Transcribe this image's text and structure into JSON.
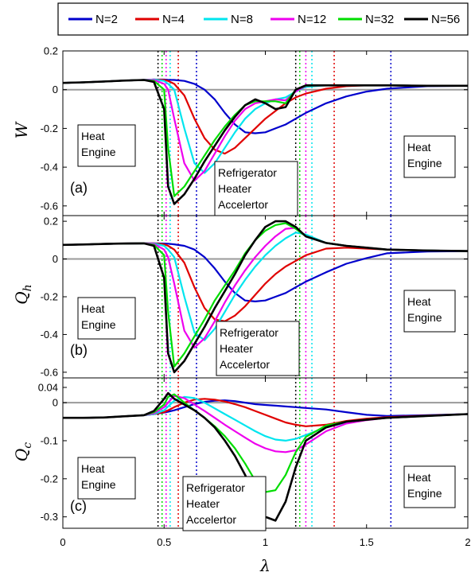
{
  "chart_data": {
    "type": "line",
    "xlabel": "λ",
    "xlim": [
      0,
      2
    ],
    "x_ticks": [
      "0",
      "0.5",
      "1",
      "1.5",
      "2"
    ],
    "legend_position": "top",
    "series_colors": [
      "#0000cc",
      "#e00000",
      "#00e5ee",
      "#ee00ee",
      "#00dd00",
      "#000000"
    ],
    "legend": [
      "N=2",
      "N=4",
      "N=8",
      "N=12",
      "N=32",
      "N=56"
    ],
    "x": [
      0,
      0.1,
      0.2,
      0.3,
      0.4,
      0.45,
      0.5,
      0.52,
      0.55,
      0.6,
      0.65,
      0.7,
      0.75,
      0.8,
      0.85,
      0.9,
      0.95,
      1.0,
      1.05,
      1.1,
      1.15,
      1.2,
      1.3,
      1.4,
      1.5,
      1.6,
      1.8,
      2.0
    ],
    "panels": [
      {
        "label": "(a)",
        "ylabel": "W",
        "ylim": [
          -0.65,
          0.2
        ],
        "y_ticks": [
          "0.2",
          "0",
          "-0.2",
          "-0.4",
          "-0.6"
        ],
        "y_tick_values": [
          0.2,
          0,
          -0.2,
          -0.4,
          -0.6
        ],
        "regions": [
          {
            "lines": [
              "Heat",
              "Engine"
            ]
          },
          {
            "lines": [
              "Refrigerator",
              "Heater",
              "Accelertor"
            ]
          },
          {
            "lines": [
              "Heat",
              "Engine"
            ]
          }
        ],
        "vlines": [
          {
            "x": 0.47,
            "series": 5
          },
          {
            "x": 0.49,
            "series": 4
          },
          {
            "x": 0.51,
            "series": 3
          },
          {
            "x": 0.53,
            "series": 2
          },
          {
            "x": 0.57,
            "series": 1
          },
          {
            "x": 0.66,
            "series": 0
          },
          {
            "x": 1.15,
            "series": 5
          },
          {
            "x": 1.17,
            "series": 4
          },
          {
            "x": 1.2,
            "series": 3
          },
          {
            "x": 1.23,
            "series": 2
          },
          {
            "x": 1.34,
            "series": 1
          },
          {
            "x": 1.62,
            "series": 0
          }
        ],
        "series": [
          {
            "values": [
              0.035,
              0.038,
              0.042,
              0.047,
              0.05,
              0.052,
              0.052,
              0.051,
              0.05,
              0.045,
              0.03,
              0.0,
              -0.05,
              -0.12,
              -0.18,
              -0.22,
              -0.225,
              -0.22,
              -0.2,
              -0.18,
              -0.15,
              -0.12,
              -0.07,
              -0.035,
              -0.01,
              0.005,
              0.018,
              0.02
            ]
          },
          {
            "values": [
              0.035,
              0.038,
              0.042,
              0.047,
              0.05,
              0.052,
              0.05,
              0.045,
              0.03,
              -0.03,
              -0.15,
              -0.25,
              -0.31,
              -0.33,
              -0.3,
              -0.25,
              -0.2,
              -0.15,
              -0.11,
              -0.07,
              -0.04,
              -0.02,
              0.005,
              0.018,
              0.022,
              0.022,
              0.02,
              0.02
            ]
          },
          {
            "values": [
              0.035,
              0.038,
              0.042,
              0.047,
              0.05,
              0.052,
              0.045,
              0.03,
              0.0,
              -0.2,
              -0.38,
              -0.43,
              -0.38,
              -0.3,
              -0.22,
              -0.15,
              -0.1,
              -0.07,
              -0.05,
              -0.04,
              -0.01,
              0.015,
              0.022,
              0.022,
              0.022,
              0.022,
              0.02,
              0.02
            ]
          },
          {
            "values": [
              0.035,
              0.038,
              0.042,
              0.047,
              0.05,
              0.05,
              0.03,
              0.0,
              -0.15,
              -0.38,
              -0.47,
              -0.42,
              -0.33,
              -0.24,
              -0.16,
              -0.1,
              -0.07,
              -0.06,
              -0.05,
              -0.055,
              -0.01,
              0.02,
              0.022,
              0.022,
              0.022,
              0.022,
              0.02,
              0.02
            ]
          },
          {
            "values": [
              0.035,
              0.038,
              0.042,
              0.047,
              0.05,
              0.045,
              0.0,
              -0.3,
              -0.55,
              -0.5,
              -0.42,
              -0.34,
              -0.26,
              -0.19,
              -0.13,
              -0.08,
              -0.06,
              -0.06,
              -0.06,
              -0.07,
              0.0,
              0.02,
              0.022,
              0.022,
              0.022,
              0.022,
              0.02,
              0.02
            ]
          },
          {
            "values": [
              0.035,
              0.038,
              0.042,
              0.047,
              0.05,
              0.04,
              -0.1,
              -0.5,
              -0.59,
              -0.54,
              -0.46,
              -0.37,
              -0.29,
              -0.21,
              -0.14,
              -0.08,
              -0.05,
              -0.07,
              -0.1,
              -0.09,
              0.0,
              0.022,
              0.022,
              0.022,
              0.022,
              0.022,
              0.02,
              0.02
            ]
          }
        ]
      },
      {
        "label": "(b)",
        "ylabel": "Q_h",
        "ylim": [
          -0.63,
          0.23
        ],
        "y_ticks": [
          "0.2",
          "0",
          "-0.2",
          "-0.4",
          "-0.6"
        ],
        "y_tick_values": [
          0.2,
          0,
          -0.2,
          -0.4,
          -0.6
        ],
        "regions": [
          {
            "lines": [
              "Heat",
              "Engine"
            ]
          },
          {
            "lines": [
              "Refrigerator",
              "Heater",
              "Accelertor"
            ]
          },
          {
            "lines": [
              "Heat",
              "Engine"
            ]
          }
        ],
        "vlines": [
          {
            "x": 0.47,
            "series": 5
          },
          {
            "x": 0.49,
            "series": 4
          },
          {
            "x": 0.51,
            "series": 3
          },
          {
            "x": 0.53,
            "series": 2
          },
          {
            "x": 0.57,
            "series": 1
          },
          {
            "x": 0.66,
            "series": 0
          },
          {
            "x": 1.15,
            "series": 5
          },
          {
            "x": 1.17,
            "series": 4
          },
          {
            "x": 1.2,
            "series": 3
          },
          {
            "x": 1.23,
            "series": 2
          },
          {
            "x": 1.34,
            "series": 1
          },
          {
            "x": 1.62,
            "series": 0
          }
        ],
        "series": [
          {
            "values": [
              0.075,
              0.077,
              0.08,
              0.082,
              0.083,
              0.083,
              0.082,
              0.081,
              0.078,
              0.07,
              0.05,
              0.01,
              -0.05,
              -0.12,
              -0.18,
              -0.22,
              -0.225,
              -0.22,
              -0.2,
              -0.18,
              -0.15,
              -0.12,
              -0.07,
              -0.025,
              0.005,
              0.03,
              0.04,
              0.042
            ]
          },
          {
            "values": [
              0.075,
              0.077,
              0.08,
              0.082,
              0.083,
              0.083,
              0.078,
              0.07,
              0.05,
              -0.02,
              -0.15,
              -0.26,
              -0.32,
              -0.33,
              -0.3,
              -0.25,
              -0.19,
              -0.13,
              -0.08,
              -0.04,
              -0.01,
              0.02,
              0.055,
              0.06,
              0.055,
              0.05,
              0.045,
              0.042
            ]
          },
          {
            "values": [
              0.075,
              0.077,
              0.08,
              0.082,
              0.083,
              0.082,
              0.07,
              0.05,
              0.01,
              -0.2,
              -0.39,
              -0.43,
              -0.37,
              -0.28,
              -0.19,
              -0.11,
              -0.04,
              0.02,
              0.07,
              0.11,
              0.14,
              0.13,
              0.085,
              0.07,
              0.06,
              0.05,
              0.045,
              0.042
            ]
          },
          {
            "values": [
              0.075,
              0.077,
              0.08,
              0.082,
              0.083,
              0.08,
              0.05,
              0.01,
              -0.13,
              -0.38,
              -0.47,
              -0.42,
              -0.33,
              -0.23,
              -0.14,
              -0.06,
              0.01,
              0.07,
              0.12,
              0.16,
              0.165,
              0.12,
              0.085,
              0.07,
              0.06,
              0.05,
              0.045,
              0.042
            ]
          },
          {
            "values": [
              0.075,
              0.077,
              0.08,
              0.082,
              0.083,
              0.075,
              0.02,
              -0.28,
              -0.57,
              -0.5,
              -0.41,
              -0.32,
              -0.22,
              -0.14,
              -0.06,
              0.03,
              0.1,
              0.15,
              0.18,
              0.19,
              0.16,
              0.12,
              0.085,
              0.07,
              0.06,
              0.05,
              0.045,
              0.042
            ]
          },
          {
            "values": [
              0.075,
              0.077,
              0.08,
              0.082,
              0.083,
              0.07,
              -0.1,
              -0.5,
              -0.6,
              -0.54,
              -0.45,
              -0.36,
              -0.26,
              -0.17,
              -0.08,
              0.02,
              0.1,
              0.17,
              0.2,
              0.2,
              0.17,
              0.12,
              0.085,
              0.07,
              0.06,
              0.05,
              0.045,
              0.042
            ]
          }
        ]
      },
      {
        "label": "(c)",
        "ylabel": "Q_c",
        "ylim": [
          -0.33,
          0.065
        ],
        "y_ticks": [
          "0.04",
          "0",
          "-0.1",
          "-0.2",
          "-0.3"
        ],
        "y_tick_values": [
          0.04,
          0,
          -0.1,
          -0.2,
          -0.3
        ],
        "regions": [
          {
            "lines": [
              "Heat",
              "Engine"
            ]
          },
          {
            "lines": [
              "Refrigerator",
              "Heater",
              "Accelertor"
            ]
          },
          {
            "lines": [
              "Heat",
              "Engine"
            ]
          }
        ],
        "vlines": [
          {
            "x": 0.47,
            "series": 5
          },
          {
            "x": 0.49,
            "series": 4
          },
          {
            "x": 0.51,
            "series": 3
          },
          {
            "x": 0.53,
            "series": 2
          },
          {
            "x": 0.57,
            "series": 1
          },
          {
            "x": 0.66,
            "series": 0
          },
          {
            "x": 1.15,
            "series": 5
          },
          {
            "x": 1.17,
            "series": 4
          },
          {
            "x": 1.2,
            "series": 3
          },
          {
            "x": 1.23,
            "series": 2
          },
          {
            "x": 1.34,
            "series": 1
          },
          {
            "x": 1.62,
            "series": 0
          }
        ],
        "series": [
          {
            "values": [
              -0.04,
              -0.04,
              -0.039,
              -0.036,
              -0.033,
              -0.03,
              -0.026,
              -0.024,
              -0.02,
              -0.012,
              -0.004,
              0.002,
              0.005,
              0.006,
              0.004,
              0.0,
              -0.004,
              -0.006,
              -0.008,
              -0.01,
              -0.012,
              -0.014,
              -0.018,
              -0.025,
              -0.032,
              -0.035,
              -0.033,
              -0.03
            ]
          },
          {
            "values": [
              -0.04,
              -0.04,
              -0.039,
              -0.036,
              -0.033,
              -0.03,
              -0.025,
              -0.02,
              -0.012,
              0.0,
              0.008,
              0.01,
              0.008,
              0.003,
              -0.004,
              -0.012,
              -0.022,
              -0.032,
              -0.042,
              -0.052,
              -0.058,
              -0.062,
              -0.058,
              -0.048,
              -0.042,
              -0.038,
              -0.034,
              -0.03
            ]
          },
          {
            "values": [
              -0.04,
              -0.04,
              -0.039,
              -0.036,
              -0.033,
              -0.03,
              -0.02,
              -0.01,
              0.005,
              0.015,
              0.012,
              0.0,
              -0.015,
              -0.03,
              -0.045,
              -0.06,
              -0.075,
              -0.088,
              -0.097,
              -0.1,
              -0.095,
              -0.085,
              -0.065,
              -0.052,
              -0.045,
              -0.04,
              -0.035,
              -0.03
            ]
          },
          {
            "values": [
              -0.04,
              -0.04,
              -0.039,
              -0.036,
              -0.033,
              -0.028,
              -0.012,
              0.0,
              0.018,
              0.012,
              -0.005,
              -0.022,
              -0.04,
              -0.058,
              -0.075,
              -0.092,
              -0.108,
              -0.12,
              -0.128,
              -0.13,
              -0.125,
              -0.11,
              -0.075,
              -0.055,
              -0.046,
              -0.04,
              -0.035,
              -0.03
            ]
          },
          {
            "values": [
              -0.04,
              -0.04,
              -0.039,
              -0.036,
              -0.033,
              -0.025,
              -0.005,
              0.015,
              0.022,
              0.0,
              -0.02,
              -0.04,
              -0.062,
              -0.088,
              -0.12,
              -0.16,
              -0.205,
              -0.235,
              -0.23,
              -0.19,
              -0.13,
              -0.09,
              -0.06,
              -0.05,
              -0.045,
              -0.04,
              -0.035,
              -0.03
            ]
          },
          {
            "values": [
              -0.04,
              -0.04,
              -0.039,
              -0.036,
              -0.033,
              -0.022,
              0.01,
              0.025,
              0.01,
              -0.005,
              -0.02,
              -0.04,
              -0.065,
              -0.1,
              -0.14,
              -0.19,
              -0.25,
              -0.3,
              -0.31,
              -0.26,
              -0.17,
              -0.1,
              -0.065,
              -0.05,
              -0.045,
              -0.04,
              -0.035,
              -0.03
            ]
          }
        ]
      }
    ]
  }
}
